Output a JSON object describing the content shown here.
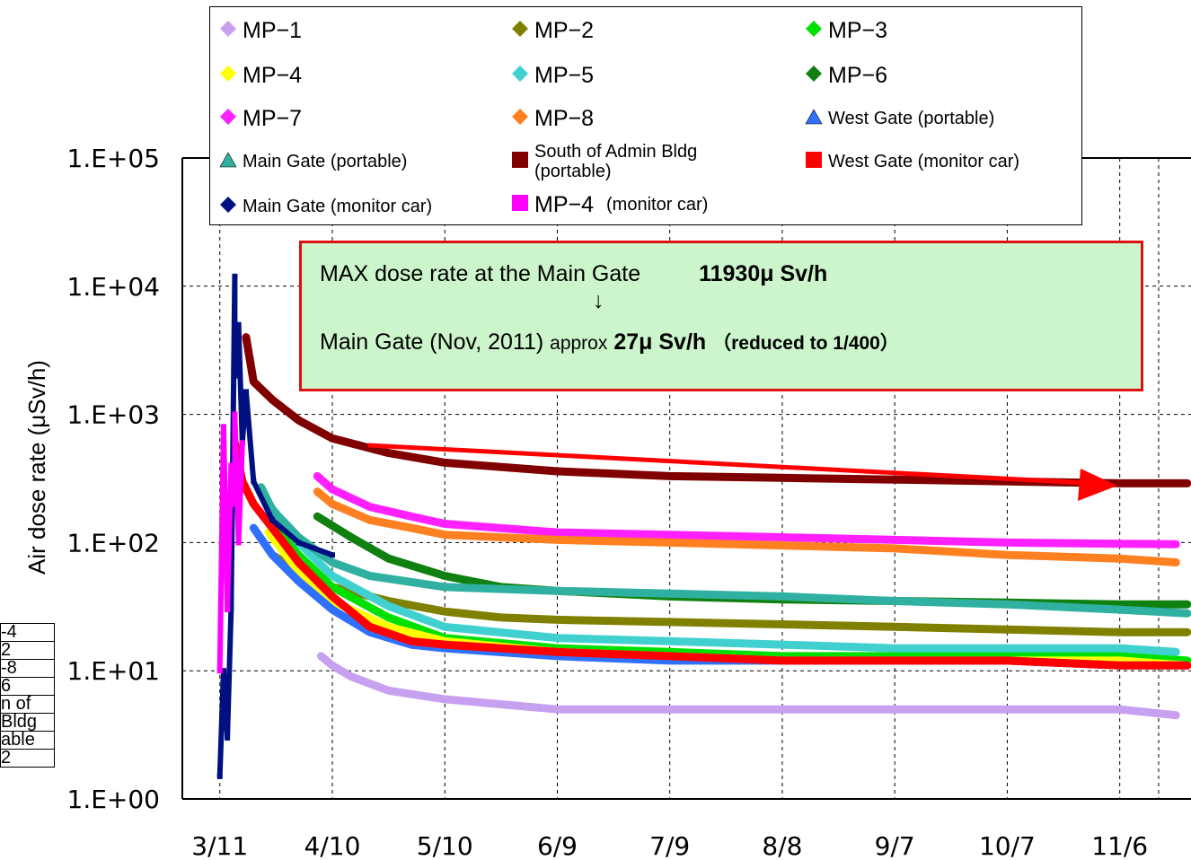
{
  "chart_data": {
    "type": "line",
    "ylabel": "Air dose rate (μSv/h)",
    "yscale": "log",
    "ylim": [
      1,
      100000
    ],
    "ytick_labels": [
      "1.E+00",
      "1.E+01",
      "1.E+02",
      "1.E+03",
      "1.E+04",
      "1.E+05"
    ],
    "xlim": [
      "3/1",
      "11/25"
    ],
    "xtick_labels": [
      "3/11",
      "4/10",
      "5/10",
      "6/9",
      "7/9",
      "8/8",
      "9/7",
      "10/7",
      "11/6"
    ],
    "grid": true,
    "legend_position": "top",
    "series": [
      {
        "name": "MP-1",
        "color": "#c8a0f0",
        "marker": "diamond",
        "x": [
          "4/7",
          "4/10",
          "4/15",
          "4/25",
          "5/10",
          "6/9",
          "7/9",
          "8/8",
          "9/7",
          "10/7",
          "11/6",
          "11/21"
        ],
        "y": [
          13,
          11,
          9,
          7,
          6,
          5,
          5,
          5,
          5,
          5,
          5,
          4.5
        ]
      },
      {
        "name": "MP-2",
        "color": "#808000",
        "marker": "diamond",
        "x": [
          "3/25",
          "4/1",
          "4/10",
          "4/25",
          "5/10",
          "5/25",
          "6/9",
          "7/9",
          "8/8",
          "9/7",
          "10/7",
          "11/6",
          "11/24"
        ],
        "y": [
          80,
          60,
          45,
          35,
          29,
          26,
          25,
          24,
          23,
          22,
          21,
          20,
          20
        ]
      },
      {
        "name": "MP-3",
        "color": "#00e000",
        "marker": "diamond",
        "x": [
          "3/24",
          "4/1",
          "4/10",
          "4/25",
          "5/10",
          "6/9",
          "7/9",
          "8/8",
          "9/7",
          "10/7",
          "11/6",
          "11/24"
        ],
        "y": [
          150,
          80,
          45,
          26,
          18,
          15,
          14,
          13,
          13,
          13,
          13,
          12
        ]
      },
      {
        "name": "MP-4",
        "color": "#ffff00",
        "marker": "diamond",
        "x": [
          "3/24",
          "4/1",
          "4/10",
          "4/25",
          "5/10",
          "6/9",
          "7/9",
          "8/8",
          "9/7",
          "10/7",
          "11/6",
          "11/24"
        ],
        "y": [
          120,
          60,
          35,
          22,
          17,
          14,
          13,
          12,
          12,
          12,
          12,
          11
        ]
      },
      {
        "name": "MP-5",
        "color": "#40d0d0",
        "marker": "diamond",
        "x": [
          "3/24",
          "4/1",
          "4/10",
          "4/25",
          "5/10",
          "6/9",
          "7/9",
          "8/8",
          "9/7",
          "10/7",
          "11/6",
          "11/21"
        ],
        "y": [
          200,
          100,
          55,
          32,
          22,
          18,
          17,
          16,
          15,
          15,
          15,
          14
        ]
      },
      {
        "name": "MP-6",
        "color": "#108010",
        "marker": "diamond",
        "x": [
          "4/6",
          "4/15",
          "4/25",
          "5/10",
          "5/25",
          "6/9",
          "7/9",
          "8/8",
          "9/7",
          "10/7",
          "11/6",
          "11/24"
        ],
        "y": [
          160,
          110,
          75,
          55,
          45,
          42,
          38,
          36,
          35,
          34,
          33,
          33
        ]
      },
      {
        "name": "MP-7",
        "color": "#ff20ff",
        "marker": "diamond",
        "x": [
          "4/6",
          "4/10",
          "4/20",
          "5/1",
          "5/10",
          "6/9",
          "7/9",
          "8/8",
          "9/7",
          "10/7",
          "11/6",
          "11/21"
        ],
        "y": [
          330,
          260,
          190,
          160,
          140,
          120,
          115,
          110,
          105,
          100,
          98,
          97
        ]
      },
      {
        "name": "MP-8",
        "color": "#ff8020",
        "marker": "diamond",
        "x": [
          "4/6",
          "4/10",
          "4/20",
          "5/1",
          "5/10",
          "6/9",
          "7/9",
          "8/8",
          "9/7",
          "10/7",
          "11/6",
          "11/21"
        ],
        "y": [
          250,
          200,
          150,
          130,
          115,
          105,
          100,
          95,
          90,
          80,
          75,
          70
        ]
      },
      {
        "name": "West Gate (portable)",
        "color": "#3070ff",
        "marker": "triangle",
        "x": [
          "3/20",
          "3/25",
          "4/1",
          "4/10",
          "4/20",
          "5/1",
          "5/10",
          "6/9",
          "7/9",
          "8/8",
          "9/7",
          "10/7",
          "11/6",
          "11/24"
        ],
        "y": [
          130,
          80,
          50,
          30,
          20,
          16,
          15,
          13,
          12,
          12,
          12,
          12,
          11,
          11
        ]
      },
      {
        "name": "Main Gate (portable)",
        "color": "#30b0a0",
        "marker": "triangle",
        "x": [
          "3/22",
          "3/25",
          "4/1",
          "4/10",
          "4/20",
          "5/10",
          "6/9",
          "7/9",
          "8/8",
          "9/7",
          "10/7",
          "11/6",
          "11/24"
        ],
        "y": [
          270,
          180,
          110,
          70,
          55,
          45,
          42,
          40,
          38,
          35,
          33,
          30,
          28
        ]
      },
      {
        "name": "South of Admin Bldg (portable)",
        "color": "#800000",
        "marker": "square",
        "x": [
          "3/18",
          "3/20",
          "3/25",
          "4/1",
          "4/10",
          "4/25",
          "5/10",
          "6/9",
          "7/9",
          "8/8",
          "9/7",
          "10/7",
          "11/6",
          "11/24"
        ],
        "y": [
          4000,
          1800,
          1300,
          900,
          650,
          500,
          420,
          360,
          330,
          320,
          310,
          300,
          290,
          290
        ]
      },
      {
        "name": "West Gate (monitor car)",
        "color": "#ff0000",
        "marker": "square",
        "x": [
          "3/15",
          "3/17",
          "3/20",
          "3/25",
          "4/1",
          "4/10",
          "4/20",
          "5/1",
          "5/10",
          "6/9",
          "7/9",
          "8/8",
          "9/7",
          "10/7",
          "11/6",
          "11/24"
        ],
        "y": [
          600,
          300,
          200,
          130,
          70,
          38,
          22,
          17,
          16,
          14,
          13,
          12,
          12,
          12,
          11,
          11
        ]
      },
      {
        "name": "Main Gate (monitor car)",
        "color": "#001080",
        "marker": "diamond",
        "x": [
          "3/11",
          "3/12",
          "3/13",
          "3/14",
          "3/15",
          "3/15",
          "3/16",
          "3/17",
          "3/18",
          "3/20",
          "3/25",
          "4/1",
          "4/10"
        ],
        "y": [
          1.5,
          10,
          3,
          30,
          11930,
          2000,
          5000,
          600,
          1500,
          300,
          150,
          100,
          80
        ]
      },
      {
        "name": "MP-4 (monitor car)",
        "color": "#ff00ff",
        "marker": "square",
        "x": [
          "3/11",
          "3/12",
          "3/13",
          "3/14",
          "3/15",
          "3/15",
          "3/16",
          "3/17"
        ],
        "y": [
          10,
          800,
          30,
          400,
          200,
          1000,
          100,
          600
        ]
      }
    ]
  },
  "legend": {
    "items": [
      {
        "label": "MP−1"
      },
      {
        "label": "MP−2"
      },
      {
        "label": "MP−3"
      },
      {
        "label": "MP−4"
      },
      {
        "label": "MP−5"
      },
      {
        "label": "MP−6"
      },
      {
        "label": "MP−7"
      },
      {
        "label": "MP−8"
      },
      {
        "label": "West Gate (portable)"
      },
      {
        "label": "Main Gate (portable)"
      },
      {
        "label": "South of Admin Bldg (portable)"
      },
      {
        "label": "West Gate (monitor car)"
      },
      {
        "label": "Main Gate (monitor car)"
      },
      {
        "label": "MP−4",
        "suffix": "(monitor car)"
      }
    ]
  },
  "annotation": {
    "line1_text": "MAX dose rate at the Main Gate",
    "line1_value": "11930μ Sv/h",
    "arrow": "↓",
    "line2_text": "Main Gate (Nov, 2011)",
    "line2_approx": "approx",
    "line2_value": "27μ Sv/h",
    "line2_note": "（reduced to 1/400）"
  },
  "side_fragment": [
    "-4",
    "2",
    "-8",
    "6",
    "n of",
    " Bldg",
    "able",
    "2"
  ]
}
